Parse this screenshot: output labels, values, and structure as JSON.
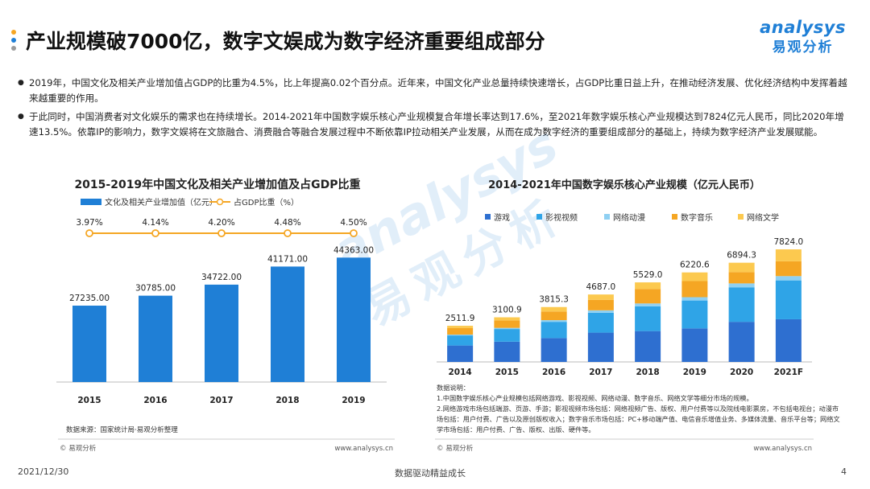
{
  "header": {
    "title": "产业规模破7000亿，数字文娱成为数字经济重要组成部分",
    "dot_colors": [
      "#f5a623",
      "#1f7fd6",
      "#9b9b9b"
    ]
  },
  "logo": {
    "en": "analysys",
    "cn": "易观分析"
  },
  "bullets": [
    "2019年，中国文化及相关产业增加值占GDP的比重为4.5%，比上年提高0.02个百分点。近年来，中国文化产业总量持续快速增长，占GDP比重日益上升，在推动经济发展、优化经济结构中发挥着越来越重要的作用。",
    "于此同时，中国消费者对文化娱乐的需求也在持续增长。2014-2021年中国数字娱乐核心产业规模复合年增长率达到17.6%，至2021年数字娱乐核心产业规模达到7824亿元人民币，同比2020年增速13.5%。依靠IP的影响力，数字文娱将在文旅融合、消费融合等融合发展过程中不断依靠IP拉动相关产业发展，从而在成为数字经济的重要组成部分的基础上，持续为数字经济产业发展赋能。"
  ],
  "chart_data": [
    {
      "type": "bar",
      "title": "2015-2019年中国文化及相关产业增加值及占GDP比重",
      "categories": [
        "2015",
        "2016",
        "2017",
        "2018",
        "2019"
      ],
      "series": [
        {
          "name": "文化及相关产业增加值（亿元）",
          "values": [
            27235.0,
            30785.0,
            34722.0,
            41171.0,
            44363.0
          ],
          "labels": [
            "27235.00",
            "30785.00",
            "34722.00",
            "41171.00",
            "44363.00"
          ],
          "color": "#1f7fd6"
        },
        {
          "name": "占GDP比重（%）",
          "type": "line",
          "values": [
            3.97,
            4.14,
            4.2,
            4.48,
            4.5
          ],
          "labels": [
            "3.97%",
            "4.14%",
            "4.20%",
            "4.48%",
            "4.50%"
          ],
          "color": "#f5a623"
        }
      ],
      "ylim": [
        0,
        60000
      ],
      "legend": "top-left",
      "source": "数据来源：国家统计局·易观分析整理",
      "copyright": "© 易观分析",
      "url": "www.analysys.cn"
    },
    {
      "type": "bar",
      "stacked": true,
      "title": "2014-2021年中国数字娱乐核心产业规模（亿元人民币）",
      "categories": [
        "2014",
        "2015",
        "2016",
        "2017",
        "2018",
        "2019",
        "2020",
        "2021F"
      ],
      "totals": [
        2511.9,
        3100.9,
        3815.3,
        4687.0,
        5529.0,
        6220.6,
        6894.3,
        7824.0
      ],
      "total_labels": [
        "2511.9",
        "3100.9",
        "3815.3",
        "4687.0",
        "5529.0",
        "6220.6",
        "6894.3",
        "7824.0"
      ],
      "series": [
        {
          "name": "游戏",
          "color": "#2e6fd0",
          "values": [
            1140,
            1407,
            1656,
            2036,
            2144,
            2330,
            2787,
            2965
          ]
        },
        {
          "name": "影视视频",
          "color": "#2fa4e7",
          "values": [
            700,
            880,
            1130,
            1380,
            1720,
            1940,
            2400,
            2700
          ]
        },
        {
          "name": "网络动漫",
          "color": "#8fd0f2",
          "values": [
            60,
            80,
            120,
            170,
            200,
            230,
            270,
            300
          ]
        },
        {
          "name": "数字音乐",
          "color": "#f5a623",
          "values": [
            450,
            520,
            600,
            730,
            1010,
            1120,
            790,
            1030
          ]
        },
        {
          "name": "网络文学",
          "color": "#fcc94f",
          "values": [
            161.9,
            213.9,
            309.3,
            371.0,
            455.0,
            600.6,
            647.3,
            829.0
          ]
        }
      ],
      "ylim": [
        0,
        9000
      ],
      "legend": "top-left",
      "notes_title": "数据说明：",
      "notes": [
        "1.中国数字娱乐核心产业规模包括网络游戏、影视视频、网络动漫、数字音乐、网络文学等细分市场的规模。",
        "2.网络游戏市场包括端游、页游、手游；影视视频市场包括：网络视频广告、版权、用户付费等以及院线电影票房，不包括电视台；动漫市场包括：用户付费、广告以及原创版权收入；数字音乐市场包括：PC+移动端产值、电信音乐增值业务、多媒体流量、音乐平台等；网络文学市场包括：用户付费、广告、版权、出版、硬件等。"
      ],
      "copyright": "© 易观分析",
      "url": "www.analysys.cn"
    }
  ],
  "footer": {
    "date": "2021/12/30",
    "slogan": "数据驱动精益成长",
    "page": "4"
  },
  "watermark": {
    "en": "analysys",
    "cn": "易观分析"
  }
}
